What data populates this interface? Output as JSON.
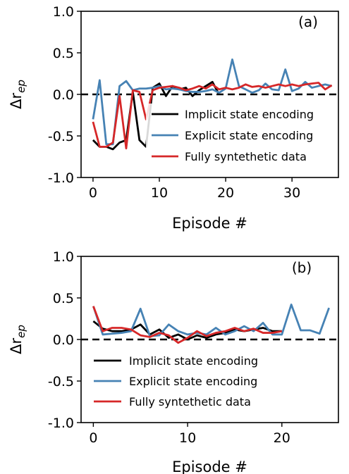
{
  "chart_data": [
    {
      "type": "line",
      "panel_label": "(a)",
      "xlabel": "Episode #",
      "ylabel": "Δr_ep",
      "xlim": [
        -1.8,
        37
      ],
      "ylim": [
        -1.0,
        1.0
      ],
      "xticks": [
        0,
        10,
        20,
        30
      ],
      "yticks": [
        -1.0,
        -0.5,
        0.0,
        0.5,
        1.0
      ],
      "ytick_labels": [
        "-1.0",
        "-0.5",
        "0.0",
        "0.5",
        "1.0"
      ],
      "zero_line": {
        "y": 0,
        "style": "dashed"
      },
      "legend_position": "center-right",
      "series": [
        {
          "name": "Implicit state encoding",
          "color": "#000000",
          "x": [
            0,
            1,
            2,
            3,
            4,
            5,
            6,
            7,
            8,
            9,
            10,
            11,
            12,
            13,
            14,
            15,
            16,
            17,
            18,
            19
          ],
          "y": [
            -0.55,
            -0.63,
            -0.63,
            -0.66,
            -0.58,
            -0.55,
            0.03,
            -0.55,
            -0.63,
            0.08,
            0.13,
            -0.02,
            0.1,
            0.06,
            0.08,
            -0.02,
            0.05,
            0.1,
            0.15,
            0.0
          ]
        },
        {
          "name": "Explicit state encoding",
          "color": "#4682b4",
          "x": [
            0,
            1,
            2,
            3,
            4,
            5,
            6,
            7,
            8,
            9,
            10,
            11,
            12,
            13,
            14,
            15,
            16,
            17,
            18,
            19,
            20,
            21,
            22,
            23,
            24,
            25,
            26,
            27,
            28,
            29,
            30,
            31,
            32,
            33,
            34,
            35,
            36
          ],
          "y": [
            -0.3,
            0.17,
            -0.6,
            -0.6,
            0.1,
            0.16,
            0.05,
            0.07,
            0.07,
            0.08,
            0.1,
            0.06,
            0.07,
            0.06,
            0.04,
            0.03,
            0.03,
            0.04,
            0.06,
            0.02,
            0.07,
            0.42,
            0.1,
            0.06,
            0.02,
            0.05,
            0.13,
            0.06,
            0.05,
            0.3,
            0.04,
            0.07,
            0.15,
            0.08,
            0.1,
            0.12,
            0.1
          ]
        },
        {
          "name": "Fully syntethetic data",
          "color": "#d62728",
          "x": [
            0,
            1,
            2,
            3,
            4,
            5,
            6,
            7,
            8,
            9,
            10,
            11,
            12,
            13,
            14,
            15,
            16,
            17,
            18,
            19,
            20,
            21,
            22,
            23,
            24,
            25,
            26,
            27,
            28,
            29,
            30,
            31,
            32,
            33,
            34,
            35,
            36
          ],
          "y": [
            -0.33,
            -0.63,
            -0.63,
            -0.58,
            -0.02,
            -0.65,
            0.05,
            0.03,
            -0.3,
            0.05,
            0.08,
            0.09,
            0.1,
            0.08,
            0.05,
            0.07,
            0.1,
            0.07,
            0.12,
            0.06,
            0.08,
            0.06,
            0.08,
            0.12,
            0.09,
            0.1,
            0.08,
            0.1,
            0.12,
            0.1,
            0.12,
            0.1,
            0.12,
            0.13,
            0.14,
            0.06,
            0.11
          ]
        }
      ]
    },
    {
      "type": "line",
      "panel_label": "(b)",
      "xlabel": "Episode #",
      "ylabel": "Δr_ep",
      "xlim": [
        -1.3,
        26
      ],
      "ylim": [
        -1.0,
        1.0
      ],
      "xticks": [
        0,
        10,
        20
      ],
      "yticks": [
        -1.0,
        -0.5,
        0.0,
        0.5,
        1.0
      ],
      "ytick_labels": [
        "-1.0",
        "-0.5",
        "0.0",
        "0.5",
        "1.0"
      ],
      "zero_line": {
        "y": 0,
        "style": "dashed"
      },
      "legend_position": "lower-center",
      "series": [
        {
          "name": "Implicit state encoding",
          "color": "#000000",
          "x": [
            0,
            1,
            2,
            3,
            4,
            5,
            6,
            7,
            8,
            9,
            10,
            11,
            12,
            13,
            14,
            15,
            16,
            17,
            18,
            19,
            20
          ],
          "y": [
            0.22,
            0.13,
            0.1,
            0.1,
            0.12,
            0.18,
            0.06,
            0.12,
            0.02,
            0.06,
            0.0,
            0.05,
            0.02,
            0.06,
            0.08,
            0.12,
            0.1,
            0.12,
            0.14,
            0.1,
            0.1
          ]
        },
        {
          "name": "Explicit state encoding",
          "color": "#4682b4",
          "x": [
            0,
            1,
            2,
            3,
            4,
            5,
            6,
            7,
            8,
            9,
            10,
            11,
            12,
            13,
            14,
            15,
            16,
            17,
            18,
            19,
            20,
            21,
            22,
            23,
            24,
            25
          ],
          "y": [
            0.4,
            0.06,
            0.07,
            0.08,
            0.1,
            0.37,
            0.04,
            0.05,
            0.18,
            0.1,
            0.06,
            0.08,
            0.06,
            0.14,
            0.06,
            0.1,
            0.16,
            0.1,
            0.2,
            0.06,
            0.06,
            0.42,
            0.11,
            0.11,
            0.07,
            0.38
          ]
        },
        {
          "name": "Fully syntethetic data",
          "color": "#d62728",
          "x": [
            0,
            1,
            2,
            3,
            4,
            5,
            6,
            7,
            8,
            9,
            10,
            11,
            12,
            13,
            14,
            15,
            16,
            17,
            18,
            19,
            20
          ],
          "y": [
            0.4,
            0.1,
            0.14,
            0.14,
            0.12,
            0.05,
            0.03,
            0.08,
            0.05,
            -0.04,
            0.02,
            0.1,
            0.04,
            0.08,
            0.1,
            0.14,
            0.1,
            0.13,
            0.08,
            0.08,
            0.1
          ]
        }
      ]
    }
  ]
}
